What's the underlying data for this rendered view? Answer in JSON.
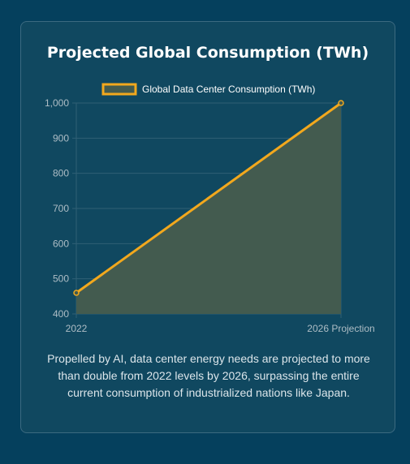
{
  "title": "Projected Global Consumption (TWh)",
  "caption": "Propelled by AI, data center energy needs are projected to more than double from 2022 levels by 2026, surpassing the entire current consumption of industrialized nations like Japan.",
  "colors": {
    "line": "#f2a81d",
    "fill": "#435b4f",
    "grid": "#2f5f75",
    "tick_text": "#aebdc5",
    "legend_text": "#ffffff"
  },
  "chart_data": {
    "type": "area",
    "categories": [
      "2022",
      "2026 Projection"
    ],
    "series": [
      {
        "name": "Global Data Center Consumption (TWh)",
        "values": [
          460,
          1000
        ]
      }
    ],
    "ylim": [
      400,
      1000
    ],
    "yticks": [
      400,
      500,
      600,
      700,
      800,
      900,
      1000
    ],
    "ytick_labels": [
      "400",
      "500",
      "600",
      "700",
      "800",
      "900",
      "1,000"
    ],
    "legend_position": "top",
    "grid": true
  }
}
